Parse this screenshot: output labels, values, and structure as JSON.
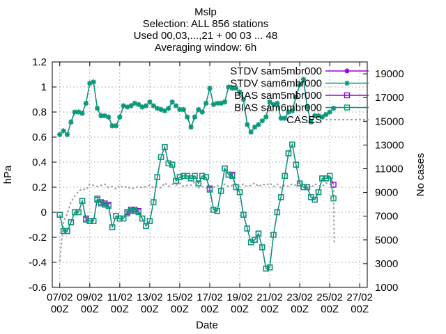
{
  "chart_data": {
    "type": "line",
    "title": "Mslp",
    "subtitle_lines": [
      "Selection: ALL     856 stations",
      "Used 00,03,...,21 + 00 03 ... 48",
      "Averaging window:  6h"
    ],
    "xlabel": "Date",
    "ylabel": "hPa",
    "y2label": "No cases",
    "ylim": [
      -0.6,
      1.2
    ],
    "y2lim": [
      1000,
      20000
    ],
    "xlim": [
      6.5,
      27.5
    ],
    "x_ticks": [
      {
        "value": 7,
        "line1": "07/02",
        "line2": "00Z"
      },
      {
        "value": 9,
        "line1": "09/02",
        "line2": "00Z"
      },
      {
        "value": 11,
        "line1": "11/02",
        "line2": "00Z"
      },
      {
        "value": 13,
        "line1": "13/02",
        "line2": "00Z"
      },
      {
        "value": 15,
        "line1": "15/02",
        "line2": "00Z"
      },
      {
        "value": 17,
        "line1": "17/02",
        "line2": "00Z"
      },
      {
        "value": 19,
        "line1": "19/02",
        "line2": "00Z"
      },
      {
        "value": 21,
        "line1": "21/02",
        "line2": "00Z"
      },
      {
        "value": 23,
        "line1": "23/02",
        "line2": "00Z"
      },
      {
        "value": 25,
        "line1": "25/02",
        "line2": "00Z"
      },
      {
        "value": 27,
        "line1": "27/02",
        "line2": "00Z"
      }
    ],
    "y_ticks": [
      {
        "value": 1.2,
        "label": "1.2"
      },
      {
        "value": 1.0,
        "label": "1"
      },
      {
        "value": 0.8,
        "label": "0.8"
      },
      {
        "value": 0.6,
        "label": "0.6"
      },
      {
        "value": 0.4,
        "label": "0.4"
      },
      {
        "value": 0.2,
        "label": "0.2"
      },
      {
        "value": 0.0,
        "label": "0"
      },
      {
        "value": -0.2,
        "label": "-0.2"
      },
      {
        "value": -0.4,
        "label": "-0.4"
      },
      {
        "value": -0.6,
        "label": "-0.6"
      }
    ],
    "y2_ticks": [
      {
        "value": 19000,
        "label": "19000"
      },
      {
        "value": 17000,
        "label": "17000"
      },
      {
        "value": 15000,
        "label": "15000"
      },
      {
        "value": 13000,
        "label": "13000"
      },
      {
        "value": 11000,
        "label": "11000"
      },
      {
        "value": 9000,
        "label": "9000"
      },
      {
        "value": 7000,
        "label": "7000"
      },
      {
        "value": 5000,
        "label": "5000"
      },
      {
        "value": 3000,
        "label": "3000"
      },
      {
        "value": 1000,
        "label": "1000"
      }
    ],
    "grid": true,
    "legend_position": "top-right",
    "x": [
      7.0,
      7.25,
      7.5,
      7.75,
      8.0,
      8.25,
      8.5,
      8.75,
      9.0,
      9.25,
      9.5,
      9.75,
      10.0,
      10.25,
      10.5,
      10.75,
      11.0,
      11.25,
      11.5,
      11.75,
      12.0,
      12.25,
      12.5,
      12.75,
      13.0,
      13.25,
      13.5,
      13.75,
      14.0,
      14.25,
      14.5,
      14.75,
      15.0,
      15.25,
      15.5,
      15.75,
      16.0,
      16.25,
      16.5,
      16.75,
      17.0,
      17.25,
      17.5,
      17.75,
      18.0,
      18.25,
      18.5,
      18.75,
      19.0,
      19.25,
      19.5,
      19.75,
      20.0,
      20.25,
      20.5,
      20.75,
      21.0,
      21.25,
      21.5,
      21.75,
      22.0,
      22.25,
      22.5,
      22.75,
      23.0,
      23.25,
      23.5,
      23.75,
      24.0,
      24.25,
      24.5,
      24.75,
      25.0,
      25.25
    ],
    "series": [
      {
        "name": "STDV sam5mbr000",
        "axis": "y1",
        "color": "#9400d3",
        "marker": "star",
        "values": [
          0.62,
          0.65,
          0.62,
          0.72,
          0.8,
          0.8,
          0.79,
          0.87,
          1.03,
          1.04,
          0.83,
          0.77,
          0.77,
          0.76,
          0.69,
          0.69,
          0.76,
          0.85,
          0.84,
          0.85,
          0.87,
          0.86,
          0.84,
          0.85,
          0.88,
          0.85,
          0.83,
          0.82,
          0.81,
          0.83,
          0.88,
          0.85,
          0.82,
          0.82,
          0.76,
          0.68,
          0.76,
          0.82,
          0.8,
          0.87,
          0.99,
          0.86,
          0.87,
          0.87,
          0.88,
          1.0,
          0.99,
          0.99,
          0.96,
          0.9,
          0.7,
          0.64,
          0.68,
          0.7,
          0.73,
          0.76,
          0.88,
          0.86,
          0.87,
          0.75,
          0.75,
          0.8,
          0.81,
          0.92,
          1.02,
          1.06,
          0.84,
          0.72,
          0.77,
          0.77,
          0.76,
          0.78,
          0.8,
          0.83
        ]
      },
      {
        "name": "STDV sam6mbr000",
        "axis": "y1",
        "color": "#009e73",
        "marker": "star-filled",
        "values": [
          0.62,
          0.65,
          0.62,
          0.72,
          0.8,
          0.8,
          0.79,
          0.87,
          1.03,
          1.04,
          0.83,
          0.77,
          0.77,
          0.76,
          0.69,
          0.69,
          0.76,
          0.85,
          0.84,
          0.85,
          0.87,
          0.86,
          0.84,
          0.85,
          0.88,
          0.85,
          0.83,
          0.82,
          0.81,
          0.83,
          0.88,
          0.85,
          0.82,
          0.82,
          0.76,
          0.68,
          0.76,
          0.82,
          0.8,
          0.87,
          0.99,
          0.86,
          0.87,
          0.87,
          0.88,
          1.0,
          0.99,
          0.99,
          0.96,
          0.9,
          0.7,
          0.64,
          0.68,
          0.7,
          0.73,
          0.76,
          0.88,
          0.86,
          0.87,
          0.75,
          0.75,
          0.8,
          0.81,
          0.92,
          1.02,
          1.06,
          0.84,
          0.72,
          0.77,
          0.77,
          0.76,
          0.78,
          0.8,
          0.83
        ]
      },
      {
        "name": "BIAS sam5mbr000",
        "axis": "y1",
        "color": "#9400d3",
        "marker": "square",
        "values": [
          -0.02,
          -0.15,
          -0.15,
          -0.08,
          0.0,
          0.0,
          0.09,
          -0.05,
          -0.07,
          -0.07,
          0.1,
          0.08,
          0.07,
          0.06,
          -0.12,
          -0.03,
          -0.05,
          -0.05,
          0.0,
          0.02,
          0.02,
          0.01,
          -0.05,
          -0.11,
          -0.07,
          0.08,
          0.28,
          0.44,
          0.52,
          0.39,
          0.38,
          0.25,
          0.28,
          0.29,
          0.29,
          0.27,
          0.29,
          0.23,
          0.29,
          0.28,
          0.19,
          0.02,
          0.01,
          0.17,
          0.35,
          0.3,
          0.3,
          0.2,
          0.16,
          -0.02,
          -0.13,
          -0.24,
          -0.22,
          -0.17,
          -0.28,
          -0.45,
          -0.44,
          -0.18,
          0.0,
          0.12,
          0.29,
          0.47,
          0.54,
          0.38,
          0.23,
          0.2,
          0.2,
          0.12,
          0.1,
          0.16,
          0.27,
          0.27,
          0.29,
          0.22
        ]
      },
      {
        "name": "BIAS sam6mbr000",
        "axis": "y1",
        "color": "#009e73",
        "marker": "square",
        "values": [
          -0.02,
          -0.15,
          -0.15,
          -0.08,
          0.0,
          0.0,
          0.09,
          -0.06,
          -0.07,
          -0.07,
          0.11,
          0.07,
          0.06,
          0.05,
          -0.12,
          -0.03,
          -0.05,
          -0.05,
          -0.01,
          0.01,
          0.01,
          0.0,
          -0.05,
          -0.11,
          -0.07,
          0.08,
          0.28,
          0.44,
          0.52,
          0.39,
          0.38,
          0.25,
          0.28,
          0.29,
          0.29,
          0.27,
          0.29,
          0.23,
          0.29,
          0.28,
          0.18,
          0.02,
          0.01,
          0.17,
          0.35,
          0.3,
          0.29,
          0.2,
          0.16,
          -0.02,
          -0.13,
          -0.24,
          -0.22,
          -0.17,
          -0.28,
          -0.45,
          -0.44,
          -0.18,
          0.0,
          0.12,
          0.29,
          0.47,
          0.54,
          0.38,
          0.23,
          0.2,
          0.2,
          0.12,
          0.1,
          0.16,
          0.27,
          0.27,
          0.29,
          0.11
        ]
      },
      {
        "name": "CASES",
        "axis": "y2",
        "color": "#a0a0a0",
        "marker": "none",
        "dashed": true,
        "x": [
          7.0,
          7.25,
          7.5,
          7.75,
          8.0,
          8.25,
          8.5,
          8.75,
          9.0,
          9.25,
          9.5,
          9.75,
          10.0,
          10.25,
          10.5,
          10.75,
          11.0,
          11.25,
          11.5,
          11.75,
          12.0,
          12.25,
          12.5,
          12.75,
          13.0,
          13.25,
          13.5,
          13.75,
          14.0,
          14.25,
          14.5,
          14.75,
          15.0,
          15.25,
          15.5,
          15.75,
          16.0,
          16.25,
          16.5,
          16.75,
          17.0,
          17.25,
          17.5,
          17.75,
          18.0,
          18.25,
          18.5,
          18.75,
          19.0,
          19.25,
          19.5,
          19.75,
          20.0,
          20.25,
          20.5,
          20.75,
          21.0,
          21.25,
          21.5,
          21.75,
          22.0,
          22.25,
          22.5,
          22.75,
          23.0,
          23.25,
          23.5,
          23.75,
          24.0,
          24.25,
          24.5,
          24.75,
          25.0,
          25.25,
          25.3
        ],
        "values": [
          3200,
          6500,
          7200,
          8200,
          8700,
          9100,
          9300,
          9200,
          9700,
          9600,
          9500,
          9600,
          9700,
          9400,
          9500,
          9300,
          9600,
          9400,
          9500,
          9300,
          9400,
          9500,
          9400,
          9500,
          9600,
          9400,
          9500,
          9400,
          9800,
          9500,
          9700,
          9600,
          9800,
          9500,
          9600,
          9600,
          9900,
          9400,
          9500,
          9400,
          9500,
          9400,
          9600,
          9400,
          9700,
          9500,
          9600,
          9700,
          9500,
          9700,
          9500,
          9600,
          9800,
          9500,
          9700,
          9600,
          9800,
          9500,
          9700,
          9400,
          9600,
          9500,
          9700,
          9600,
          9900,
          9700,
          9500,
          9400,
          9700,
          9600,
          9500,
          9800,
          9700,
          9500,
          4800
        ]
      }
    ]
  }
}
